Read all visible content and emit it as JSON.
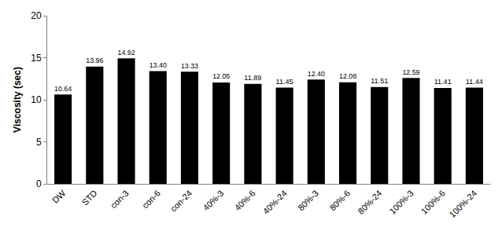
{
  "chart_data": {
    "type": "bar",
    "y_label": "Viscosity (sec)",
    "categories": [
      "DW",
      "STD",
      "con-3",
      "con-6",
      "con-24",
      "40%-3",
      "40%-6",
      "40%-24",
      "80%-3",
      "80%-6",
      "80%-24",
      "100%-3",
      "100%-6",
      "100%-24"
    ],
    "values": [
      10.64,
      13.96,
      14.92,
      13.4,
      13.33,
      12.05,
      11.89,
      11.45,
      12.4,
      12.08,
      11.51,
      12.59,
      11.41,
      11.44
    ],
    "value_labels": [
      "10.64",
      "13.96",
      "14.92",
      "13.40",
      "13.33",
      "12.05",
      "11.89",
      "11.45",
      "12.40",
      "12.08",
      "11.51",
      "12.59",
      "11.41",
      "11.44"
    ],
    "color": "#000000",
    "ylim": [
      0,
      20
    ],
    "yticks": [
      0,
      5,
      10,
      15,
      20
    ],
    "grid": false,
    "data_labels": true
  }
}
